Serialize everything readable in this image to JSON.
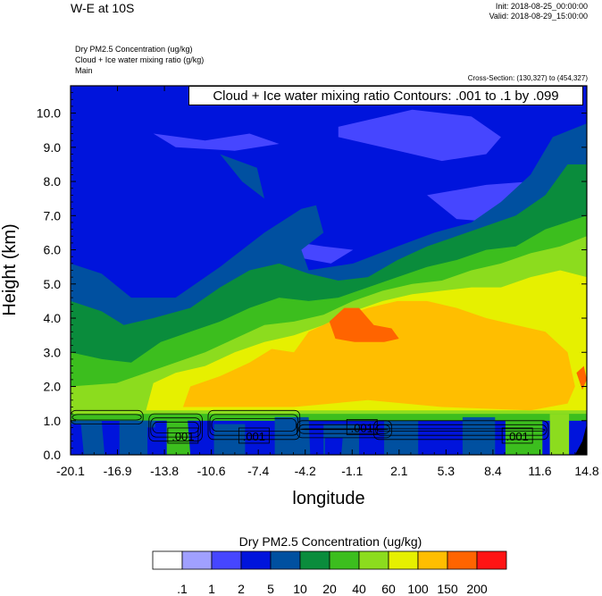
{
  "header": {
    "title": "W-E at 10S",
    "init": "Init: 2018-08-25_00:00:00",
    "valid": "Valid: 2018-08-29_15:00:00",
    "field1": "Dry PM2.5 Concentration   (ug/kg)",
    "field2": "Cloud + Ice water mixing ratio   (g/kg)",
    "field3": "Main",
    "cross_section": "Cross-Section: (130,327) to (454,327)",
    "contour_note": "Cloud + Ice water mixing ratio Contours: .001 to .1 by .099"
  },
  "chart_data": {
    "type": "heatmap",
    "title": "W-E at 10S",
    "xlabel": "longitude",
    "ylabel": "Height (km)",
    "xlim": [
      -20.1,
      14.8
    ],
    "ylim": [
      0.0,
      10.8
    ],
    "x_ticks": [
      "-20.1",
      "-16.9",
      "-13.8",
      "-10.6",
      "-7.4",
      "-4.2",
      "-1.1",
      "2.1",
      "5.3",
      "8.4",
      "11.6",
      "14.8"
    ],
    "y_ticks": [
      "0.0",
      "1.0",
      "2.0",
      "3.0",
      "4.0",
      "5.0",
      "6.0",
      "7.0",
      "8.0",
      "9.0",
      "10.0"
    ],
    "colorbar": {
      "label": "Dry PM2.5 Concentration  (ug/kg)",
      "levels": [
        ".1",
        "1",
        "2",
        "5",
        "10",
        "20",
        "40",
        "60",
        "100",
        "150",
        "200"
      ],
      "colors": [
        "#ffffff",
        "#a0a0ff",
        "#4646ff",
        "#0014dc",
        "#0050a0",
        "#0a8c3c",
        "#3cbe1e",
        "#8cdc1e",
        "#e6f000",
        "#ffbe00",
        "#ff6400",
        "#ff1414"
      ]
    },
    "contours": {
      "variable": "Cloud + Ice water mixing ratio",
      "levels": [
        0.001,
        0.1
      ],
      "labels": [
        {
          "text": ".001",
          "lon": -12.5,
          "height": 0.55
        },
        {
          "text": ".001",
          "lon": -7.7,
          "height": 0.55
        },
        {
          "text": ".001",
          "lon": -0.4,
          "height": 0.8
        },
        {
          "text": ".001",
          "lon": 10.1,
          "height": 0.55
        }
      ]
    },
    "regions": [
      {
        "level_index": 3,
        "points": [
          [
            -20.1,
            10.8
          ],
          [
            14.8,
            10.8
          ],
          [
            14.8,
            0
          ],
          [
            -20.1,
            0
          ]
        ]
      },
      {
        "level_index": 2,
        "points": [
          [
            -14.5,
            9.4
          ],
          [
            -11,
            9.2
          ],
          [
            -8,
            9.4
          ],
          [
            -6,
            9.1
          ],
          [
            -9,
            8.9
          ],
          [
            -13,
            9.0
          ]
        ]
      },
      {
        "level_index": 2,
        "points": [
          [
            -2,
            9.6
          ],
          [
            3,
            10.1
          ],
          [
            7,
            9.9
          ],
          [
            9,
            9.3
          ],
          [
            8,
            8.8
          ],
          [
            5,
            8.6
          ],
          [
            1,
            9.0
          ],
          [
            -2,
            9.3
          ]
        ]
      },
      {
        "level_index": 2,
        "points": [
          [
            -6,
            6.3
          ],
          [
            -3,
            6.1
          ],
          [
            -1,
            6.0
          ],
          [
            -2.5,
            5.6
          ],
          [
            -5,
            5.8
          ]
        ]
      },
      {
        "level_index": 2,
        "points": [
          [
            4,
            7.6
          ],
          [
            8,
            7.9
          ],
          [
            11,
            8.0
          ],
          [
            13,
            8.5
          ],
          [
            14.8,
            8.6
          ],
          [
            14.8,
            7.2
          ],
          [
            12,
            7.0
          ],
          [
            9,
            6.8
          ],
          [
            6,
            6.9
          ]
        ]
      },
      {
        "level_index": 4,
        "points": [
          [
            -20.1,
            5.6
          ],
          [
            -18,
            5.3
          ],
          [
            -16,
            4.6
          ],
          [
            -13,
            4.6
          ],
          [
            -10,
            5.5
          ],
          [
            -7,
            6.5
          ],
          [
            -4.5,
            7.2
          ],
          [
            -3.5,
            7.3
          ],
          [
            -3,
            6.5
          ],
          [
            -4.5,
            6.0
          ],
          [
            -4,
            5.4
          ],
          [
            -1,
            5.6
          ],
          [
            2,
            6.1
          ],
          [
            4.5,
            6.5
          ],
          [
            7,
            6.8
          ],
          [
            9,
            7.4
          ],
          [
            11,
            8.2
          ],
          [
            12.5,
            9.3
          ],
          [
            14.8,
            9.7
          ],
          [
            14.8,
            1.0
          ],
          [
            -20.1,
            1.0
          ]
        ]
      },
      {
        "level_index": 4,
        "points": [
          [
            -10,
            8.8
          ],
          [
            -7.5,
            8.4
          ],
          [
            -7,
            7.5
          ],
          [
            -8.5,
            8.0
          ]
        ]
      },
      {
        "level_index": 5,
        "points": [
          [
            -20.1,
            4.5
          ],
          [
            -18,
            4.2
          ],
          [
            -16.5,
            3.8
          ],
          [
            -14.5,
            4.0
          ],
          [
            -12,
            4.3
          ],
          [
            -10,
            4.9
          ],
          [
            -8,
            5.4
          ],
          [
            -6,
            5.6
          ],
          [
            -4,
            5.3
          ],
          [
            -2,
            5.1
          ],
          [
            0,
            5.2
          ],
          [
            2,
            5.7
          ],
          [
            4,
            6.1
          ],
          [
            6,
            6.4
          ],
          [
            8,
            6.7
          ],
          [
            10,
            7.0
          ],
          [
            12,
            7.6
          ],
          [
            13.5,
            8.5
          ],
          [
            14.8,
            8.5
          ],
          [
            14.8,
            1.0
          ],
          [
            -20.1,
            1.0
          ]
        ]
      },
      {
        "level_index": 6,
        "points": [
          [
            -20.1,
            3.0
          ],
          [
            -18,
            2.8
          ],
          [
            -16,
            2.7
          ],
          [
            -14,
            3.3
          ],
          [
            -12,
            3.6
          ],
          [
            -10,
            3.9
          ],
          [
            -8,
            4.3
          ],
          [
            -6,
            4.6
          ],
          [
            -4,
            4.5
          ],
          [
            -2,
            4.6
          ],
          [
            0,
            4.9
          ],
          [
            2,
            5.2
          ],
          [
            4,
            5.5
          ],
          [
            6,
            5.7
          ],
          [
            8,
            6.0
          ],
          [
            10,
            6.1
          ],
          [
            12,
            6.6
          ],
          [
            14.8,
            7.0
          ],
          [
            14.8,
            1.0
          ],
          [
            -20.1,
            1.0
          ]
        ]
      },
      {
        "level_index": 7,
        "points": [
          [
            -20.1,
            2.0
          ],
          [
            -17,
            2.1
          ],
          [
            -15,
            2.4
          ],
          [
            -13,
            2.7
          ],
          [
            -11,
            3.0
          ],
          [
            -9,
            3.4
          ],
          [
            -7,
            3.8
          ],
          [
            -5,
            3.9
          ],
          [
            -3,
            4.1
          ],
          [
            -1,
            4.5
          ],
          [
            1,
            4.8
          ],
          [
            3,
            5.0
          ],
          [
            5,
            5.1
          ],
          [
            7,
            5.4
          ],
          [
            9,
            5.6
          ],
          [
            11,
            5.9
          ],
          [
            13,
            6.1
          ],
          [
            14.8,
            6.4
          ],
          [
            14.8,
            1.2
          ],
          [
            -20.1,
            1.2
          ]
        ]
      },
      {
        "level_index": 8,
        "points": [
          [
            -15,
            1.3
          ],
          [
            -14.5,
            2.1
          ],
          [
            -13,
            2.4
          ],
          [
            -11,
            2.6
          ],
          [
            -9,
            3.0
          ],
          [
            -7,
            3.3
          ],
          [
            -5,
            3.5
          ],
          [
            -3,
            3.8
          ],
          [
            -1,
            4.2
          ],
          [
            1,
            4.5
          ],
          [
            3,
            4.7
          ],
          [
            5,
            4.8
          ],
          [
            7,
            4.9
          ],
          [
            9,
            4.9
          ],
          [
            11,
            5.2
          ],
          [
            13,
            5.4
          ],
          [
            14.8,
            5.2
          ],
          [
            14.8,
            1.3
          ]
        ]
      },
      {
        "level_index": 9,
        "points": [
          [
            -12.5,
            1.4
          ],
          [
            -12,
            2.0
          ],
          [
            -10,
            2.3
          ],
          [
            -8,
            2.7
          ],
          [
            -6.5,
            3.1
          ],
          [
            -5,
            3.0
          ],
          [
            -4,
            3.6
          ],
          [
            -2,
            4.0
          ],
          [
            0,
            4.3
          ],
          [
            2,
            4.5
          ],
          [
            4,
            4.5
          ],
          [
            6,
            4.3
          ],
          [
            8,
            4.0
          ],
          [
            10,
            3.8
          ],
          [
            12,
            3.6
          ],
          [
            13.5,
            3.0
          ],
          [
            14,
            2.0
          ],
          [
            13.5,
            1.5
          ],
          [
            11,
            1.3
          ],
          [
            5,
            1.4
          ],
          [
            0,
            1.6
          ],
          [
            -5,
            1.4
          ],
          [
            -10,
            1.4
          ]
        ]
      },
      {
        "level_index": 10,
        "points": [
          [
            -2.6,
            3.9
          ],
          [
            -1.6,
            4.3
          ],
          [
            -0.6,
            4.3
          ],
          [
            0.4,
            3.8
          ],
          [
            1.6,
            3.7
          ],
          [
            2.1,
            3.4
          ],
          [
            1.1,
            3.3
          ],
          [
            -0.9,
            3.3
          ],
          [
            -2.2,
            3.4
          ]
        ]
      },
      {
        "level_index": 10,
        "points": [
          [
            14.1,
            2.4
          ],
          [
            14.6,
            2.6
          ],
          [
            14.8,
            2.2
          ],
          [
            14.5,
            1.9
          ]
        ]
      },
      {
        "level_index": 4,
        "points": [
          [
            -20.1,
            1.0
          ],
          [
            -18,
            1.0
          ],
          [
            -17.8,
            0.0
          ],
          [
            -20.1,
            0.0
          ]
        ]
      },
      {
        "level_index": 4,
        "points": [
          [
            -16.8,
            1.0
          ],
          [
            -14.4,
            1.0
          ],
          [
            -14.3,
            0.0
          ],
          [
            -16.8,
            0.0
          ]
        ]
      },
      {
        "level_index": 4,
        "points": [
          [
            -10.4,
            0.9
          ],
          [
            -8.3,
            0.9
          ],
          [
            -8.3,
            0.0
          ],
          [
            -10.4,
            0.0
          ]
        ]
      },
      {
        "level_index": 4,
        "points": [
          [
            -6.3,
            1.1
          ],
          [
            -4.0,
            1.1
          ],
          [
            -3.9,
            0.0
          ],
          [
            -6.3,
            0.0
          ]
        ]
      },
      {
        "level_index": 4,
        "points": [
          [
            -3.0,
            0.9
          ],
          [
            -0.6,
            0.9
          ],
          [
            -0.6,
            0.0
          ],
          [
            -3.0,
            0.0
          ]
        ]
      },
      {
        "level_index": 4,
        "points": [
          [
            1.1,
            1.0
          ],
          [
            3.4,
            1.0
          ],
          [
            3.4,
            0.0
          ],
          [
            1.1,
            0.0
          ]
        ]
      },
      {
        "level_index": 4,
        "points": [
          [
            6.4,
            1.1
          ],
          [
            8.6,
            1.1
          ],
          [
            8.6,
            0.0
          ],
          [
            6.4,
            0.0
          ]
        ]
      },
      {
        "level_index": 3,
        "points": [
          [
            -20.1,
            0.9
          ],
          [
            -19.4,
            0.9
          ],
          [
            -19.2,
            0.0
          ],
          [
            -20.1,
            0.0
          ]
        ]
      },
      {
        "level_index": 3,
        "points": [
          [
            -14.9,
            0.8
          ],
          [
            -13.6,
            0.8
          ],
          [
            -13.6,
            0.0
          ],
          [
            -14.9,
            0.0
          ]
        ]
      },
      {
        "level_index": 3,
        "points": [
          [
            -2.9,
            0.5
          ],
          [
            -1.7,
            0.5
          ],
          [
            -1.8,
            0.0
          ],
          [
            -2.9,
            0.0
          ]
        ]
      },
      {
        "level_index": 6,
        "points": [
          [
            -13.6,
            1.1
          ],
          [
            -12.2,
            1.1
          ],
          [
            -12.0,
            0.0
          ],
          [
            -13.6,
            0.0
          ]
        ]
      },
      {
        "level_index": 6,
        "points": [
          [
            9.3,
            1.1
          ],
          [
            11.8,
            1.1
          ],
          [
            11.8,
            0.0
          ],
          [
            9.3,
            0.0
          ]
        ]
      },
      {
        "level_index": 7,
        "points": [
          [
            12.3,
            1.2
          ],
          [
            13.6,
            1.2
          ],
          [
            13.6,
            0.0
          ],
          [
            12.3,
            0.0
          ]
        ]
      }
    ]
  }
}
